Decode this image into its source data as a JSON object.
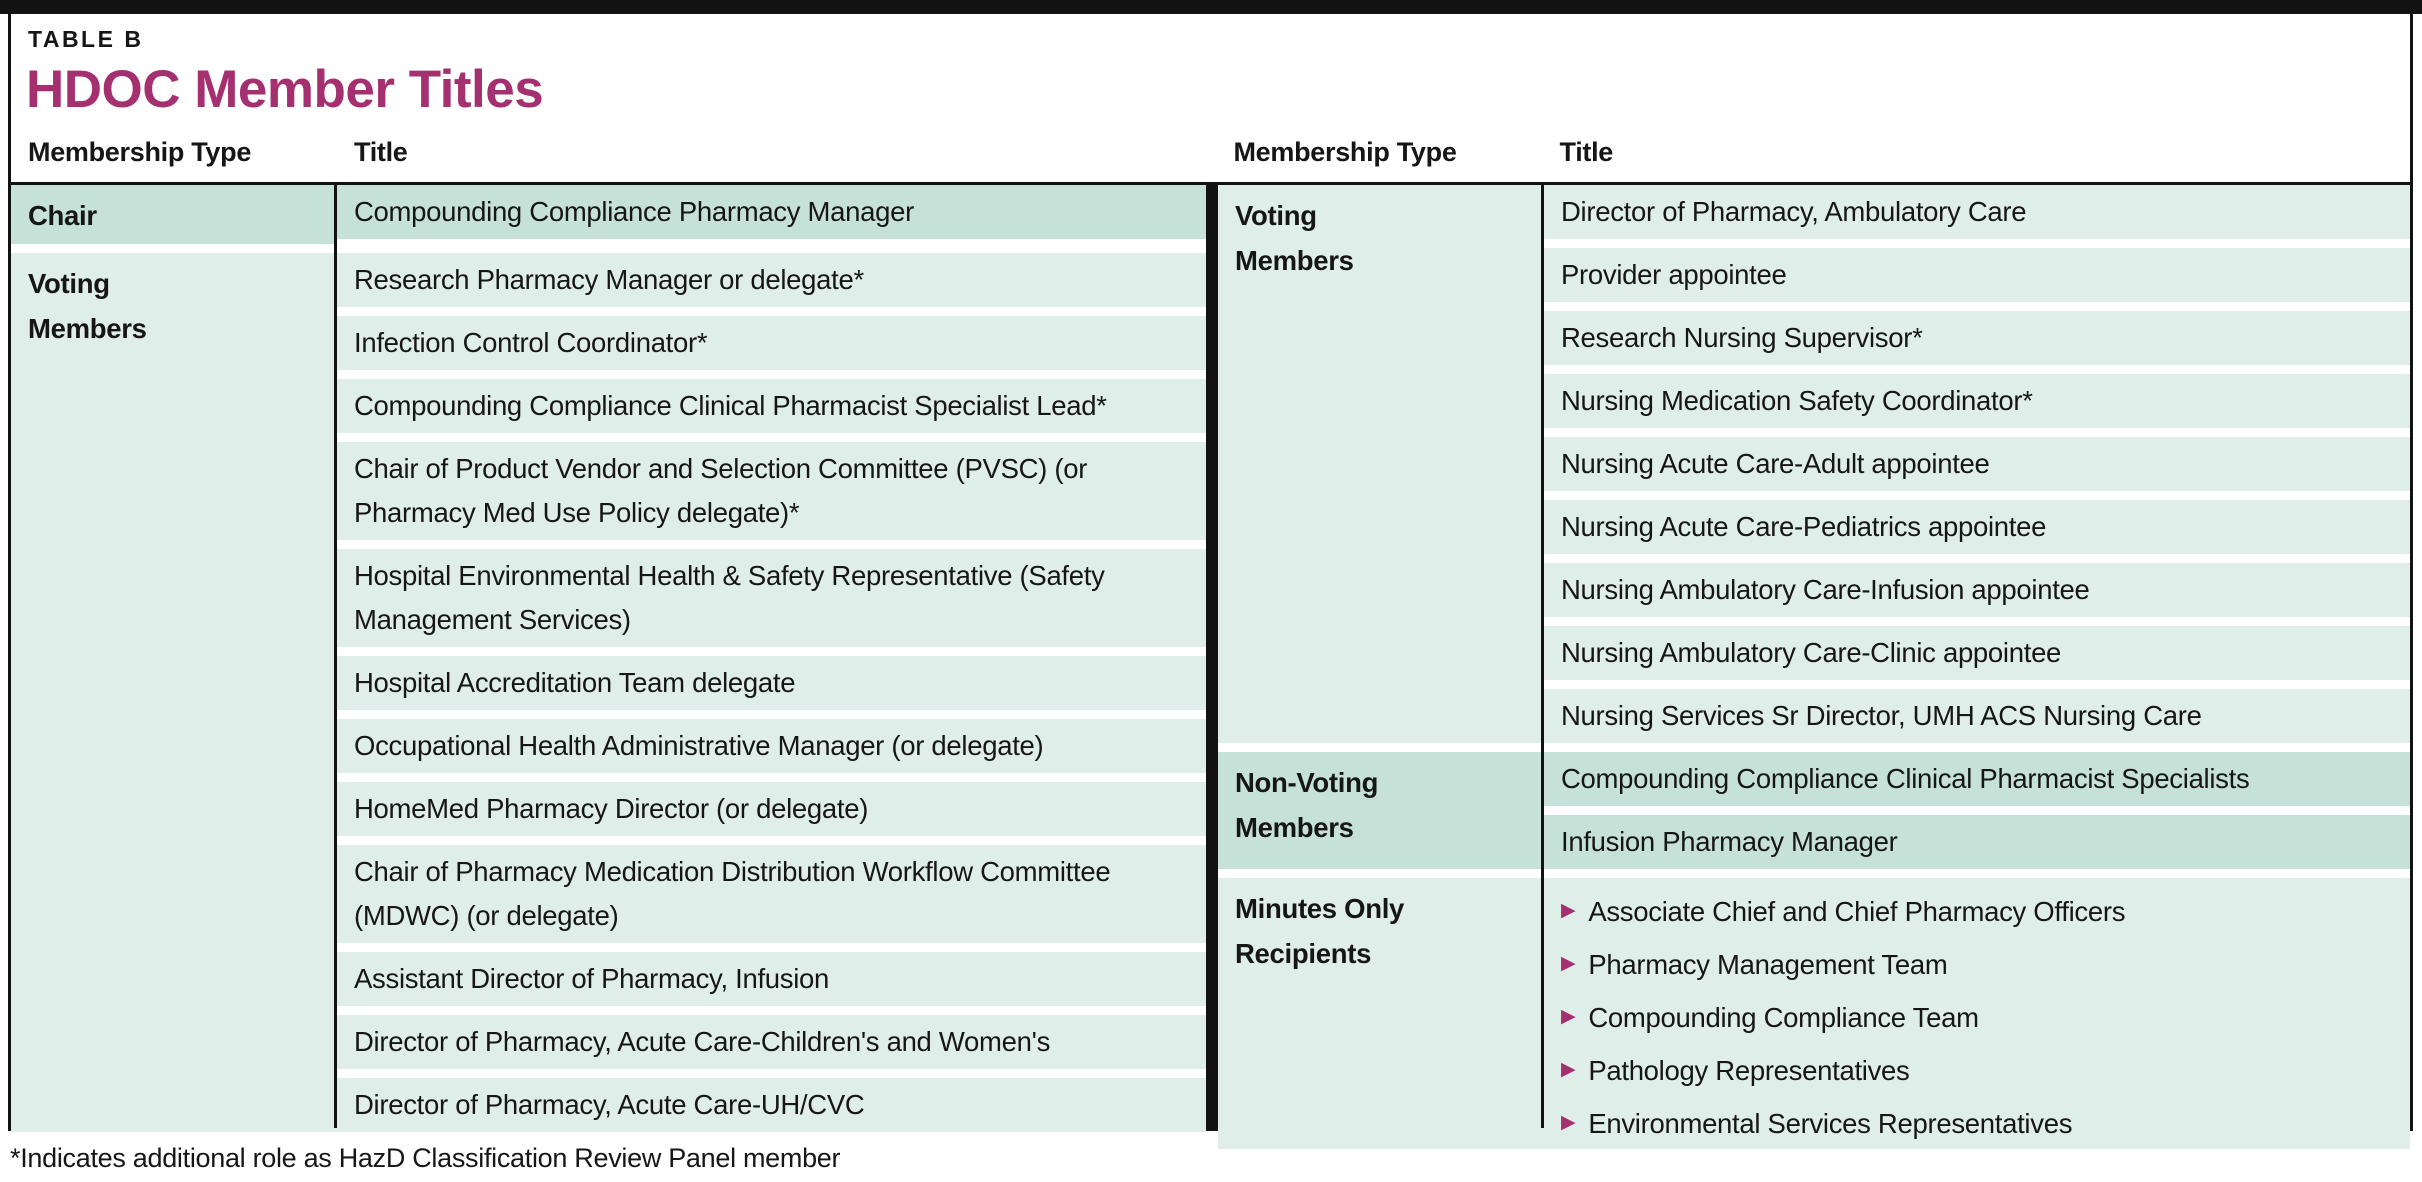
{
  "table_label": "TABLE B",
  "title": "HDOC Member Titles",
  "headers": {
    "membership_type": "Membership Type",
    "title": "Title"
  },
  "footnote": "*Indicates additional role as HazD Classification Review Panel member",
  "bullet_glyph": "▶",
  "colors": {
    "accent": "#a5306f",
    "row_light": "#dfeee9",
    "row_dark": "#c5e1d8",
    "bar_black": "#121212"
  },
  "left": {
    "groups": [
      {
        "type": "Chair",
        "shade": "dark",
        "titles": [
          "Compounding Compliance Pharmacy Manager"
        ]
      },
      {
        "type": "Voting\nMembers",
        "shade": "light",
        "titles": [
          "Research Pharmacy Manager or delegate*",
          "Infection Control Coordinator*",
          "Compounding Compliance Clinical Pharmacist Specialist Lead*",
          "Chair of Product Vendor and Selection Committee (PVSC) (or Pharmacy Med Use Policy delegate)*",
          "Hospital Environmental Health & Safety Representative (Safety Management Services)",
          "Hospital Accreditation Team delegate",
          "Occupational Health Administrative Manager (or delegate)",
          "HomeMed Pharmacy Director (or delegate)",
          "Chair of Pharmacy Medication Distribution Workflow Committee (MDWC) (or delegate)",
          "Assistant Director of Pharmacy, Infusion",
          "Director of Pharmacy, Acute Care-Children's and Women's",
          "Director of Pharmacy, Acute Care-UH/CVC"
        ]
      }
    ]
  },
  "right": {
    "groups": [
      {
        "type": "Voting\nMembers",
        "shade": "light",
        "titles": [
          "Director of Pharmacy, Ambulatory Care",
          "Provider appointee",
          "Research Nursing Supervisor*",
          "Nursing Medication Safety Coordinator*",
          "Nursing Acute Care-Adult appointee",
          "Nursing Acute Care-Pediatrics appointee",
          "Nursing Ambulatory Care-Infusion appointee",
          "Nursing Ambulatory Care-Clinic appointee",
          "Nursing Services Sr Director, UMH ACS Nursing Care"
        ]
      },
      {
        "type": "Non-Voting\nMembers",
        "shade": "dark",
        "titles": [
          "Compounding Compliance Clinical Pharmacist Specialists",
          "Infusion Pharmacy Manager"
        ]
      },
      {
        "type": "Minutes Only\nRecipients",
        "shade": "light",
        "bullets": [
          "Associate Chief and Chief Pharmacy Officers",
          "Pharmacy Management Team",
          "Compounding Compliance Team",
          "Pathology Representatives",
          "Environmental Services Representatives"
        ]
      }
    ]
  }
}
